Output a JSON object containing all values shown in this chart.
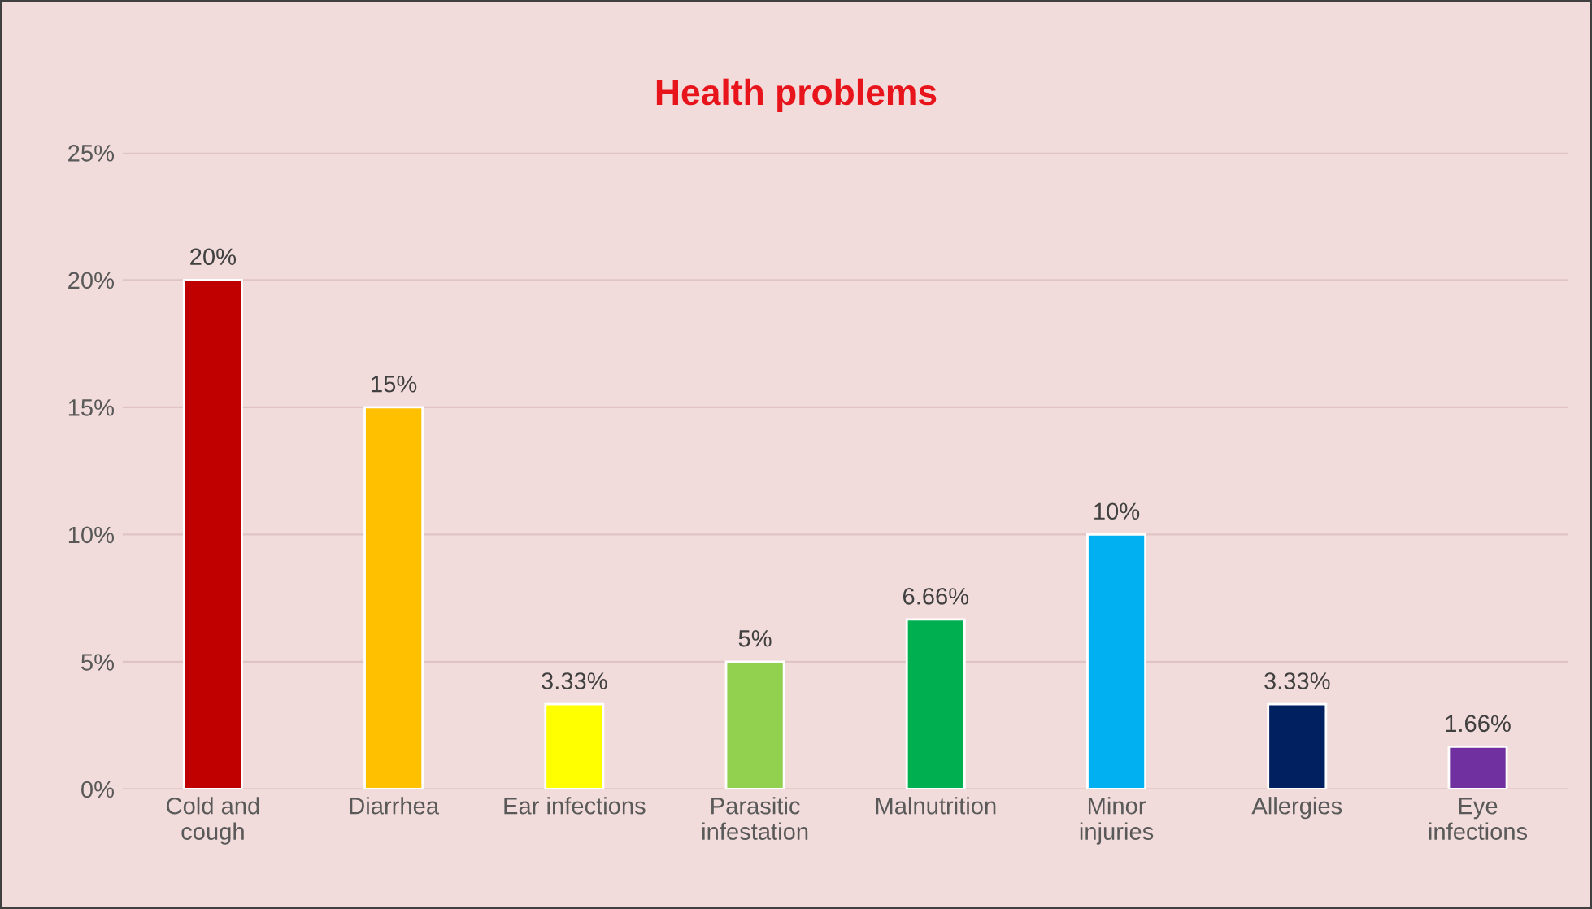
{
  "chart_data": {
    "type": "bar",
    "title": "Health problems",
    "categories": [
      "Cold and\ncough",
      "Diarrhea",
      "Ear infections",
      "Parasitic\ninfestation",
      "Malnutrition",
      "Minor\ninjuries",
      "Allergies",
      "Eye\ninfections"
    ],
    "values": [
      20,
      15,
      3.33,
      5,
      6.66,
      10,
      3.33,
      1.66
    ],
    "colors": [
      "#c00000",
      "#ffc000",
      "#ffff00",
      "#92d050",
      "#00b050",
      "#00b0f0",
      "#002060",
      "#7030a0"
    ],
    "value_labels": [
      "20%",
      "15%",
      "3.33%",
      "5%",
      "6.66%",
      "10%",
      "3.33%",
      "1.66%"
    ],
    "ylim": [
      0,
      25
    ],
    "yticks": [
      {
        "value": 0,
        "label": "0%"
      },
      {
        "value": 5,
        "label": "5%"
      },
      {
        "value": 10,
        "label": "10%"
      },
      {
        "value": 15,
        "label": "15%"
      },
      {
        "value": 20,
        "label": "20%"
      },
      {
        "value": 25,
        "label": "25%"
      }
    ],
    "grid": "y",
    "legend": false
  }
}
